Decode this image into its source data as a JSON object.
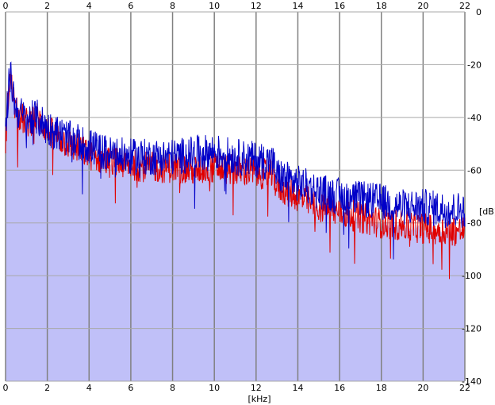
{
  "chart_data": {
    "type": "area",
    "title": "",
    "xlabel": "[kHz]",
    "ylabel": "[dB]",
    "xlim": [
      0,
      22
    ],
    "ylim": [
      -140,
      0
    ],
    "x_ticks": [
      0,
      2,
      4,
      6,
      8,
      10,
      12,
      14,
      16,
      18,
      20,
      22
    ],
    "y_ticks": [
      0,
      -20,
      -40,
      -60,
      -80,
      -100,
      -120,
      -140
    ],
    "x_tick_labels": [
      "0",
      "2",
      "4",
      "6",
      "8",
      "10",
      "12",
      "14",
      "16",
      "18",
      "20",
      "22"
    ],
    "y_tick_labels": [
      "0",
      "-20",
      "-40",
      "-60",
      "-80",
      "-100",
      "-120",
      "-140"
    ],
    "grid": true,
    "series": [
      {
        "style": "filled-area",
        "color": "#c0c0f8",
        "x": [
          0,
          0.2,
          0.5,
          1,
          1.5,
          2,
          3,
          4,
          5,
          6,
          7,
          8,
          9,
          10,
          11,
          12,
          12.8,
          13,
          14,
          15,
          16,
          17,
          18,
          19,
          20,
          21,
          22
        ],
        "values": [
          -48,
          -24,
          -38,
          -42,
          -40,
          -45,
          -50,
          -54,
          -57,
          -58,
          -59,
          -59,
          -60,
          -59,
          -60,
          -61,
          -62,
          -66,
          -70,
          -74,
          -76,
          -78,
          -80,
          -81,
          -82,
          -83,
          -83
        ]
      },
      {
        "style": "line",
        "color": "#e00000",
        "x": [
          0,
          0.2,
          0.5,
          1,
          1.5,
          2,
          3,
          4,
          5,
          6,
          7,
          8,
          9,
          10,
          11,
          12,
          12.8,
          13,
          14,
          15,
          16,
          17,
          18,
          19,
          20,
          21,
          22
        ],
        "values": [
          -48,
          -24,
          -38,
          -42,
          -40,
          -45,
          -50,
          -54,
          -57,
          -58,
          -59,
          -59,
          -60,
          -59,
          -60,
          -61,
          -62,
          -66,
          -70,
          -74,
          -76,
          -78,
          -80,
          -81,
          -82,
          -83,
          -83
        ]
      },
      {
        "style": "line",
        "color": "#0000c8",
        "x": [
          0,
          0.2,
          0.5,
          1,
          1.5,
          2,
          3,
          4,
          5,
          6,
          7,
          8,
          9,
          10,
          11,
          12,
          12.8,
          13,
          14,
          15,
          16,
          17,
          18,
          19,
          20,
          21,
          22
        ],
        "values": [
          -46,
          -23,
          -37,
          -41,
          -40,
          -44,
          -48,
          -51,
          -54,
          -55,
          -55,
          -55,
          -54,
          -53,
          -55,
          -56,
          -57,
          -62,
          -65,
          -68,
          -70,
          -71,
          -72,
          -74,
          -74,
          -75,
          -75
        ]
      }
    ]
  }
}
